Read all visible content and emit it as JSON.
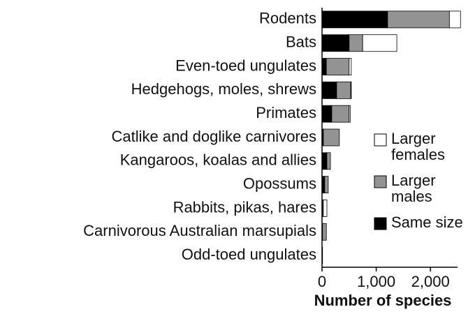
{
  "chart_data": {
    "type": "stacked-bar-horizontal",
    "categories": [
      "Rodents",
      "Bats",
      "Even-toed ungulates",
      "Hedgehogs, moles, shrews",
      "Primates",
      "Catlike and doglike carnivores",
      "Kangaroos, koalas and allies",
      "Opossums",
      "Rabbits, pikas, hares",
      "Carnivorous Australian marsupials",
      "Odd-toed ungulates"
    ],
    "series": [
      {
        "name": "Same size",
        "color": "#000000",
        "values": [
          1210,
          500,
          80,
          270,
          180,
          25,
          90,
          50,
          10,
          10,
          10
        ]
      },
      {
        "name": "Larger males",
        "color": "#939393",
        "values": [
          1140,
          250,
          420,
          260,
          320,
          295,
          65,
          65,
          15,
          70,
          0
        ]
      },
      {
        "name": "Larger females",
        "color": "#ffffff",
        "values": [
          205,
          630,
          40,
          10,
          20,
          0,
          0,
          0,
          65,
          0,
          0
        ]
      }
    ],
    "xlim": [
      0,
      2500
    ],
    "xticks": [
      0,
      {
        "value": 1000,
        "label": "1,000"
      },
      {
        "value": 2000,
        "label": "2,000"
      }
    ],
    "xlabel": "Number of species"
  }
}
